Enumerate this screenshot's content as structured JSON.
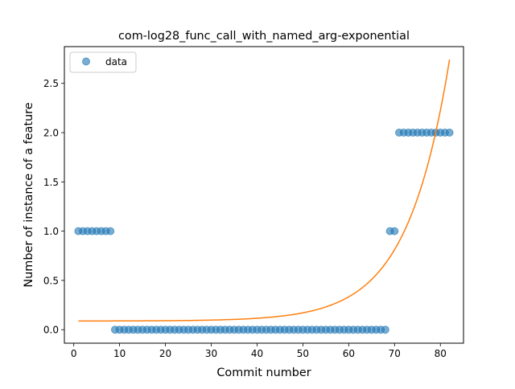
{
  "chart_data": {
    "type": "scatter",
    "title": "com-log28_func_call_with_named_arg-exponential",
    "xlabel": "Commit number",
    "ylabel": "Number of instance of a feature",
    "xlim": [
      -2.05,
      85.05
    ],
    "ylim": [
      -0.137,
      2.873
    ],
    "xticks": [
      0,
      10,
      20,
      30,
      40,
      50,
      60,
      70,
      80
    ],
    "xtick_labels": [
      "0",
      "10",
      "20",
      "30",
      "40",
      "50",
      "60",
      "70",
      "80"
    ],
    "yticks": [
      0.0,
      0.5,
      1.0,
      1.5,
      2.0,
      2.5
    ],
    "ytick_labels": [
      "0.0",
      "0.5",
      "1.0",
      "1.5",
      "2.0",
      "2.5"
    ],
    "legend": {
      "position": "top-left",
      "entries": [
        "data"
      ]
    },
    "grid": false,
    "series": [
      {
        "name": "data",
        "kind": "scatter",
        "color": "#1f77b4",
        "x": [
          1,
          2,
          3,
          4,
          5,
          6,
          7,
          8,
          9,
          10,
          11,
          12,
          13,
          14,
          15,
          16,
          17,
          18,
          19,
          20,
          21,
          22,
          23,
          24,
          25,
          26,
          27,
          28,
          29,
          30,
          31,
          32,
          33,
          34,
          35,
          36,
          37,
          38,
          39,
          40,
          41,
          42,
          43,
          44,
          45,
          46,
          47,
          48,
          49,
          50,
          51,
          52,
          53,
          54,
          55,
          56,
          57,
          58,
          59,
          60,
          61,
          62,
          63,
          64,
          65,
          66,
          67,
          68,
          69,
          70,
          71,
          72,
          73,
          74,
          75,
          76,
          77,
          78,
          79,
          80,
          81,
          82
        ],
        "y": [
          1,
          1,
          1,
          1,
          1,
          1,
          1,
          1,
          0,
          0,
          0,
          0,
          0,
          0,
          0,
          0,
          0,
          0,
          0,
          0,
          0,
          0,
          0,
          0,
          0,
          0,
          0,
          0,
          0,
          0,
          0,
          0,
          0,
          0,
          0,
          0,
          0,
          0,
          0,
          0,
          0,
          0,
          0,
          0,
          0,
          0,
          0,
          0,
          0,
          0,
          0,
          0,
          0,
          0,
          0,
          0,
          0,
          0,
          0,
          0,
          0,
          0,
          0,
          0,
          0,
          0,
          0,
          0,
          1,
          1,
          2,
          2,
          2,
          2,
          2,
          2,
          2,
          2,
          2,
          2,
          2,
          2
        ]
      },
      {
        "kind": "line",
        "color": "#ff7f0e",
        "fit": {
          "model": "a*exp(b*x)+c",
          "a": 0.000372,
          "b": 0.1082,
          "c": 0.0879
        },
        "x_range": [
          1,
          82
        ]
      }
    ]
  }
}
